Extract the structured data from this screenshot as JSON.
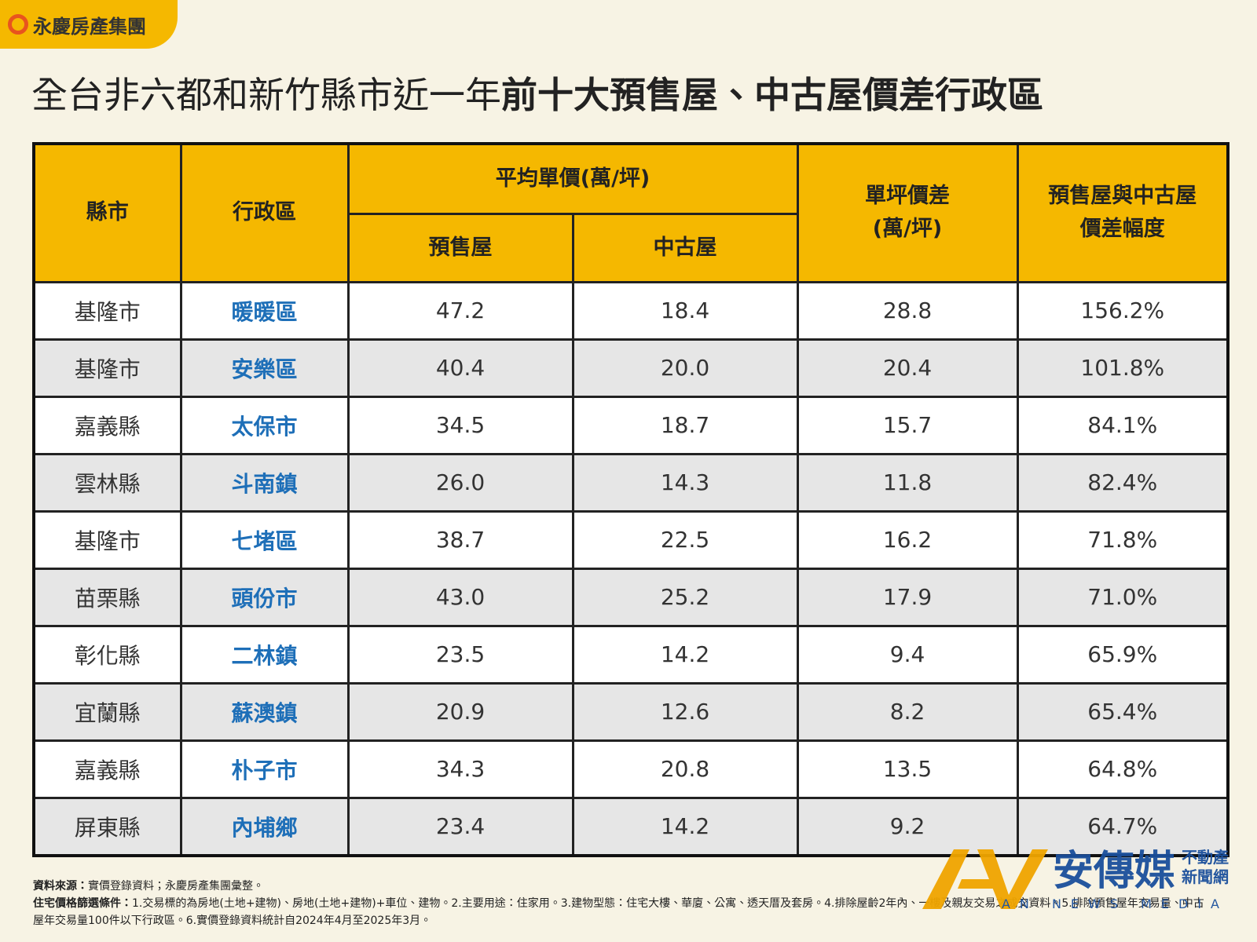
{
  "logo": "永慶房產集團",
  "title": {
    "regular": "全台非六都和新竹縣市近一年",
    "bold": "前十大預售屋、中古屋價差行政區"
  },
  "table": {
    "headers": {
      "city": "縣市",
      "district": "行政區",
      "avg_price": "平均單價(萬/坪)",
      "presale": "預售屋",
      "existing": "中古屋",
      "diff": [
        "單坪價差",
        "(萬/坪)"
      ],
      "ratio": [
        "預售屋與中古屋",
        "價差幅度"
      ]
    },
    "rows": [
      [
        "基隆市",
        "暖暖區",
        "47.2",
        "18.4",
        "28.8",
        "156.2%"
      ],
      [
        "基隆市",
        "安樂區",
        "40.4",
        "20.0",
        "20.4",
        "101.8%"
      ],
      [
        "嘉義縣",
        "太保市",
        "34.5",
        "18.7",
        "15.7",
        "84.1%"
      ],
      [
        "雲林縣",
        "斗南鎮",
        "26.0",
        "14.3",
        "11.8",
        "82.4%"
      ],
      [
        "基隆市",
        "七堵區",
        "38.7",
        "22.5",
        "16.2",
        "71.8%"
      ],
      [
        "苗栗縣",
        "頭份市",
        "43.0",
        "25.2",
        "17.9",
        "71.0%"
      ],
      [
        "彰化縣",
        "二林鎮",
        "23.5",
        "14.2",
        "9.4",
        "65.9%"
      ],
      [
        "宜蘭縣",
        "蘇澳鎮",
        "20.9",
        "12.6",
        "8.2",
        "65.4%"
      ],
      [
        "嘉義縣",
        "朴子市",
        "34.3",
        "20.8",
        "13.5",
        "64.8%"
      ],
      [
        "屏東縣",
        "內埔鄉",
        "23.4",
        "14.2",
        "9.2",
        "64.7%"
      ]
    ]
  },
  "footnotes": {
    "source_label": "資料來源：",
    "source": "實價登錄資料；永慶房產集團彙整。",
    "criteria_label": "住宅價格篩選條件：",
    "criteria": "1.交易標的為房地(土地+建物)、房地(土地+建物)+車位、建物。2.主要用途：住家用。3.建物型態：住宅大樓、華廈、公寓、透天厝及套房。4.排除屋齡2年內、一樓及親友交易之成交資料。5.排除預售屋年交易量、中古屋年交易量100件以下行政區。6.實價登錄資料統計自2024年4月至2025年3月。"
  },
  "watermark": {
    "name": "安傳媒",
    "tag": [
      "不動產",
      "新聞網"
    ],
    "english": "AN NEWS MEDIA"
  }
}
